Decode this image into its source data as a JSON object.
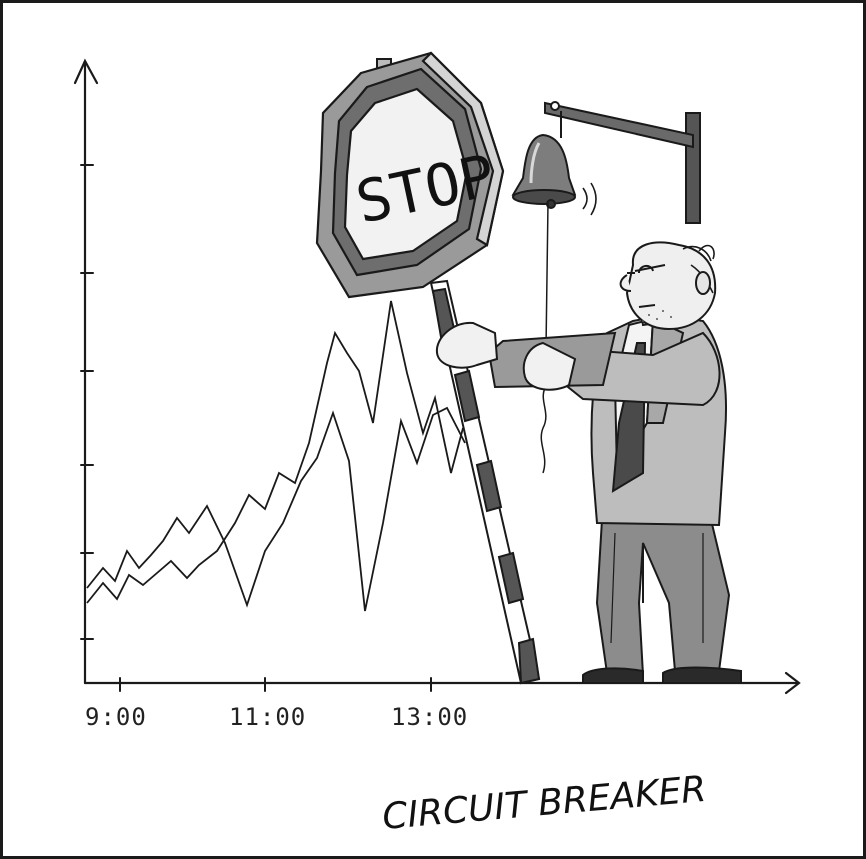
{
  "cartoon": {
    "sign_text": "STOP",
    "caption": "CIRCUIT BREAKER",
    "x_tick_labels": [
      "9:00",
      "11:00",
      "13:00"
    ]
  },
  "colors": {
    "ink": "#1a1a1a",
    "sign_face": "#f2f2f2",
    "sign_rim": "#8a8a8a",
    "pole_dark": "#555555",
    "suit": "#bdbdbd",
    "pants": "#8c8c8c"
  }
}
